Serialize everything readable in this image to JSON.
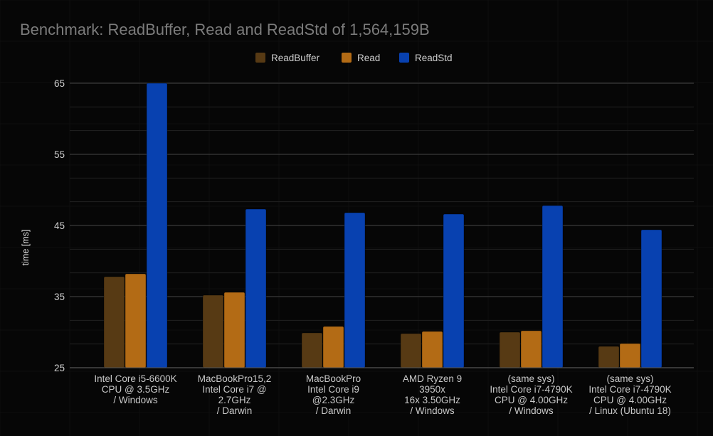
{
  "chart_data": {
    "type": "bar",
    "title": "Benchmark: ReadBuffer, Read and ReadStd of 1,564,159B",
    "xlabel": "",
    "ylabel": "time [ms]",
    "ylim": [
      25,
      65
    ],
    "yticks": [
      25,
      35,
      45,
      55,
      65
    ],
    "grid": true,
    "legend_position": "top-center",
    "categories": [
      [
        "Intel Core i5-6600K",
        "CPU @ 3.5GHz",
        "/ Windows"
      ],
      [
        "MacBookPro15,2",
        "Intel Core i7 @",
        "2.7GHz",
        "/ Darwin"
      ],
      [
        "MacBookPro",
        "Intel Core i9",
        "@2.3GHz",
        "/ Darwin"
      ],
      [
        "AMD Ryzen 9",
        "3950x",
        "16x 3.50GHz",
        "/ Windows"
      ],
      [
        "(same sys)",
        "Intel Core i7-4790K",
        "CPU @ 4.00GHz",
        "/ Windows"
      ],
      [
        "(same sys)",
        "Intel Core i7-4790K",
        "CPU @ 4.00GHz",
        "/ Linux (Ubuntu 18)"
      ]
    ],
    "series": [
      {
        "name": "ReadBuffer",
        "color": "#573a14",
        "values": [
          37.8,
          35.2,
          29.9,
          29.8,
          30.0,
          28.0
        ]
      },
      {
        "name": "Read",
        "color": "#b36b15",
        "values": [
          38.2,
          35.6,
          30.8,
          30.1,
          30.2,
          28.4
        ]
      },
      {
        "name": "ReadStd",
        "color": "#0841b0",
        "values": [
          65.0,
          47.3,
          46.8,
          46.6,
          47.8,
          44.4
        ]
      }
    ]
  }
}
